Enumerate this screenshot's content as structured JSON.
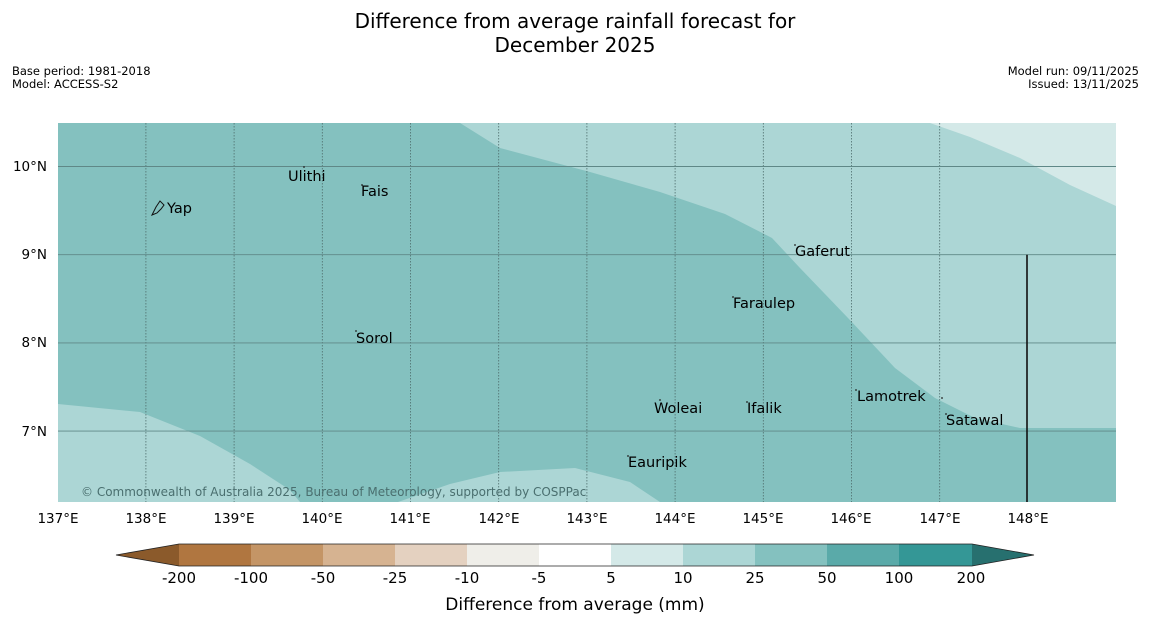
{
  "title_line1": "Difference from average rainfall forecast for",
  "title_line2": "December 2025",
  "base_period": "Base period: 1981-2018",
  "model": "Model: ACCESS-S2",
  "model_run": "Model run: 09/11/2025",
  "issued": "Issued: 13/11/2025",
  "copyright": "© Commonwealth of Australia 2025, Bureau of Meteorology, supported by COSPPac",
  "lon_ticks": [
    "137°E",
    "138°E",
    "139°E",
    "140°E",
    "141°E",
    "142°E",
    "143°E",
    "144°E",
    "145°E",
    "146°E",
    "147°E",
    "148°E"
  ],
  "lat_ticks": [
    "10°N",
    "9°N",
    "8°N",
    "7°N"
  ],
  "places": [
    "Yap",
    "Ulithi",
    "Fais",
    "Sorol",
    "Gaferut",
    "Faraulep",
    "Woleai",
    "Ifalik",
    "Lamotrek",
    "Satawal",
    "Eauripik"
  ],
  "colorbar": {
    "title": "Difference from average (mm)",
    "tick_labels": [
      "-200",
      "-100",
      "-50",
      "-25",
      "-10",
      "-5",
      "5",
      "10",
      "25",
      "50",
      "100",
      "200"
    ],
    "colors": [
      "#8b5a2b",
      "#b07640",
      "#c49566",
      "#d6b391",
      "#e4d1c0",
      "#efeee9",
      "#ffffff",
      "#d4e9e8",
      "#acd6d5",
      "#84c1bf",
      "#5aaaa9",
      "#349796",
      "#27706f"
    ]
  }
}
